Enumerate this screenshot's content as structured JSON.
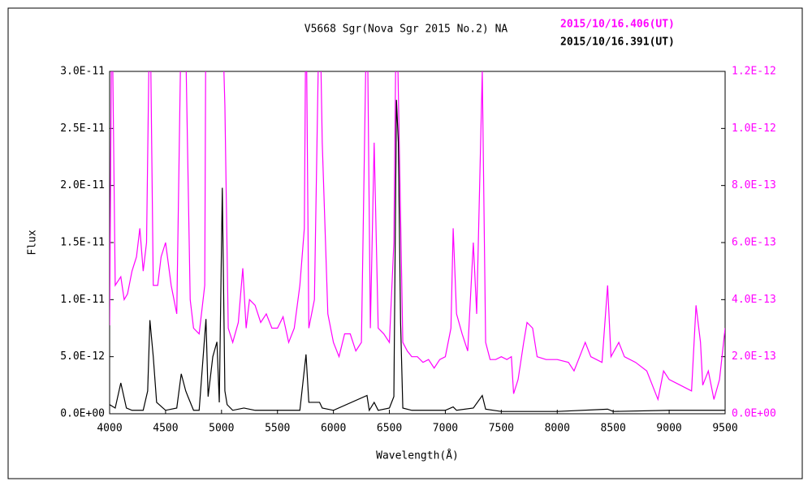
{
  "chart_data": {
    "type": "line",
    "title": "V5668 Sgr(Nova Sgr 2015 No.2)   NA",
    "xlabel": "Wavelength(Å)",
    "ylabel": "Flux",
    "xlim": [
      4000,
      9500
    ],
    "xticks": [
      4000,
      4500,
      5000,
      5500,
      6000,
      6500,
      7000,
      7500,
      8000,
      8500,
      9000,
      9500
    ],
    "ylim": [
      0,
      3e-11
    ],
    "yticks": [
      {
        "value": 0,
        "label": "0.0E+00"
      },
      {
        "value": 5e-12,
        "label": "5.0E-12"
      },
      {
        "value": 1e-11,
        "label": "1.0E-11"
      },
      {
        "value": 1.5e-11,
        "label": "1.5E-11"
      },
      {
        "value": 2e-11,
        "label": "2.0E-11"
      },
      {
        "value": 2.5e-11,
        "label": "2.5E-11"
      },
      {
        "value": 3e-11,
        "label": "3.0E-11"
      }
    ],
    "y2lim": [
      0,
      1.2e-12
    ],
    "y2ticks": [
      {
        "value": 0,
        "label": "0.0E+00"
      },
      {
        "value": 2e-13,
        "label": "2.0E-13"
      },
      {
        "value": 4e-13,
        "label": "4.0E-13"
      },
      {
        "value": 6e-13,
        "label": "6.0E-13"
      },
      {
        "value": 8e-13,
        "label": "8.0E-13"
      },
      {
        "value": 1e-12,
        "label": "1.0E-12"
      },
      {
        "value": 1.2e-12,
        "label": "1.2E-12"
      }
    ],
    "series": [
      {
        "name": "2015/10/16.406(UT)",
        "color": "#ff00ff",
        "axis": "y2",
        "x": [
          4000,
          4020,
          4050,
          4100,
          4130,
          4160,
          4200,
          4240,
          4270,
          4300,
          4330,
          4360,
          4390,
          4430,
          4460,
          4500,
          4550,
          4600,
          4640,
          4680,
          4720,
          4750,
          4800,
          4850,
          4861,
          4900,
          4950,
          5000,
          5030,
          5060,
          5100,
          5150,
          5190,
          5220,
          5250,
          5300,
          5350,
          5400,
          5450,
          5500,
          5550,
          5600,
          5650,
          5700,
          5740,
          5755,
          5780,
          5830,
          5876,
          5900,
          5950,
          6000,
          6050,
          6100,
          6150,
          6200,
          6250,
          6300,
          6330,
          6364,
          6400,
          6450,
          6500,
          6540,
          6563,
          6620,
          6660,
          6700,
          6750,
          6800,
          6850,
          6900,
          6950,
          7000,
          7050,
          7070,
          7100,
          7150,
          7200,
          7250,
          7280,
          7330,
          7360,
          7400,
          7450,
          7500,
          7550,
          7590,
          7610,
          7650,
          7700,
          7730,
          7780,
          7820,
          7900,
          8000,
          8100,
          8150,
          8200,
          8250,
          8300,
          8400,
          8450,
          8480,
          8550,
          8600,
          8700,
          8800,
          8850,
          8900,
          8950,
          9000,
          9100,
          9200,
          9240,
          9280,
          9300,
          9350,
          9400,
          9450,
          9500
        ],
        "values": [
          3.1e-13,
          1.5e-12,
          4.5e-13,
          4.8e-13,
          4e-13,
          4.2e-13,
          5e-13,
          5.5e-13,
          6.5e-13,
          5e-13,
          6e-13,
          1.5e-12,
          4.5e-13,
          4.5e-13,
          5.5e-13,
          6e-13,
          4.5e-13,
          3.5e-13,
          1.4e-12,
          1.3e-12,
          4e-13,
          3e-13,
          2.8e-13,
          4.5e-13,
          1.5e-12,
          1.3e-12,
          1.5e-12,
          1.5e-12,
          1.08e-12,
          3e-13,
          2.5e-13,
          3.2e-13,
          5.1e-13,
          3e-13,
          4e-13,
          3.8e-13,
          3.2e-13,
          3.5e-13,
          3e-13,
          3e-13,
          3.4e-13,
          2.5e-13,
          3e-13,
          4.5e-13,
          6.5e-13,
          1.5e-12,
          3e-13,
          4e-13,
          1.5e-12,
          9.5e-13,
          3.5e-13,
          2.5e-13,
          2e-13,
          2.8e-13,
          2.8e-13,
          2.2e-13,
          2.5e-13,
          1.5e-12,
          3e-13,
          9.5e-13,
          3e-13,
          2.8e-13,
          2.5e-13,
          6e-13,
          1.5e-12,
          2.5e-13,
          2.2e-13,
          2e-13,
          2e-13,
          1.8e-13,
          1.9e-13,
          1.6e-13,
          1.9e-13,
          2e-13,
          3e-13,
          6.5e-13,
          3.5e-13,
          2.8e-13,
          2.2e-13,
          6e-13,
          3.5e-13,
          1.2e-12,
          2.5e-13,
          1.9e-13,
          1.9e-13,
          2e-13,
          1.9e-13,
          2e-13,
          7e-14,
          1.2e-13,
          2.5e-13,
          3.2e-13,
          3e-13,
          2e-13,
          1.9e-13,
          1.9e-13,
          1.8e-13,
          1.5e-13,
          2e-13,
          2.5e-13,
          2e-13,
          1.8e-13,
          4.5e-13,
          2e-13,
          2.5e-13,
          2e-13,
          1.8e-13,
          1.5e-13,
          1e-13,
          5e-14,
          1.5e-13,
          1.2e-13,
          1e-13,
          8e-14,
          3.8e-13,
          2.5e-13,
          1e-13,
          1.5e-13,
          5e-14,
          1.2e-13,
          3e-13
        ]
      },
      {
        "name": "2015/10/16.391(UT)",
        "color": "#000000",
        "x": [
          4000,
          4050,
          4100,
          4150,
          4200,
          4300,
          4340,
          4360,
          4390,
          4420,
          4500,
          4600,
          4640,
          4680,
          4700,
          4750,
          4800,
          4861,
          4880,
          4922,
          4959,
          4980,
          5007,
          5030,
          5050,
          5100,
          5200,
          5300,
          5500,
          5700,
          5755,
          5780,
          5876,
          5900,
          6000,
          6300,
          6320,
          6364,
          6400,
          6500,
          6540,
          6563,
          6580,
          6600,
          6620,
          6700,
          7000,
          7070,
          7100,
          7250,
          7330,
          7360,
          7500,
          8000,
          8450,
          8500,
          9000,
          9500
        ],
        "values": [
          8e-13,
          5e-13,
          2.7e-12,
          5e-13,
          3e-13,
          3e-13,
          2e-12,
          8.2e-12,
          5e-12,
          1e-12,
          3e-13,
          5e-13,
          3.5e-12,
          2e-12,
          1.5e-12,
          3e-13,
          3e-13,
          8.3e-12,
          1.5e-12,
          5e-12,
          6.3e-12,
          1e-12,
          1.98e-11,
          2e-12,
          8e-13,
          3e-13,
          5e-13,
          3e-13,
          3e-13,
          3e-13,
          5.2e-12,
          1e-12,
          1e-12,
          5e-13,
          3e-13,
          1.6e-12,
          3e-13,
          1e-12,
          3e-13,
          5e-13,
          1.5e-12,
          2.75e-11,
          2.38e-11,
          8e-12,
          5e-13,
          3e-13,
          3e-13,
          6e-13,
          3e-13,
          5e-13,
          1.6e-12,
          4e-13,
          2e-13,
          2e-13,
          4e-13,
          2e-13,
          3e-13,
          3e-13
        ]
      }
    ]
  }
}
